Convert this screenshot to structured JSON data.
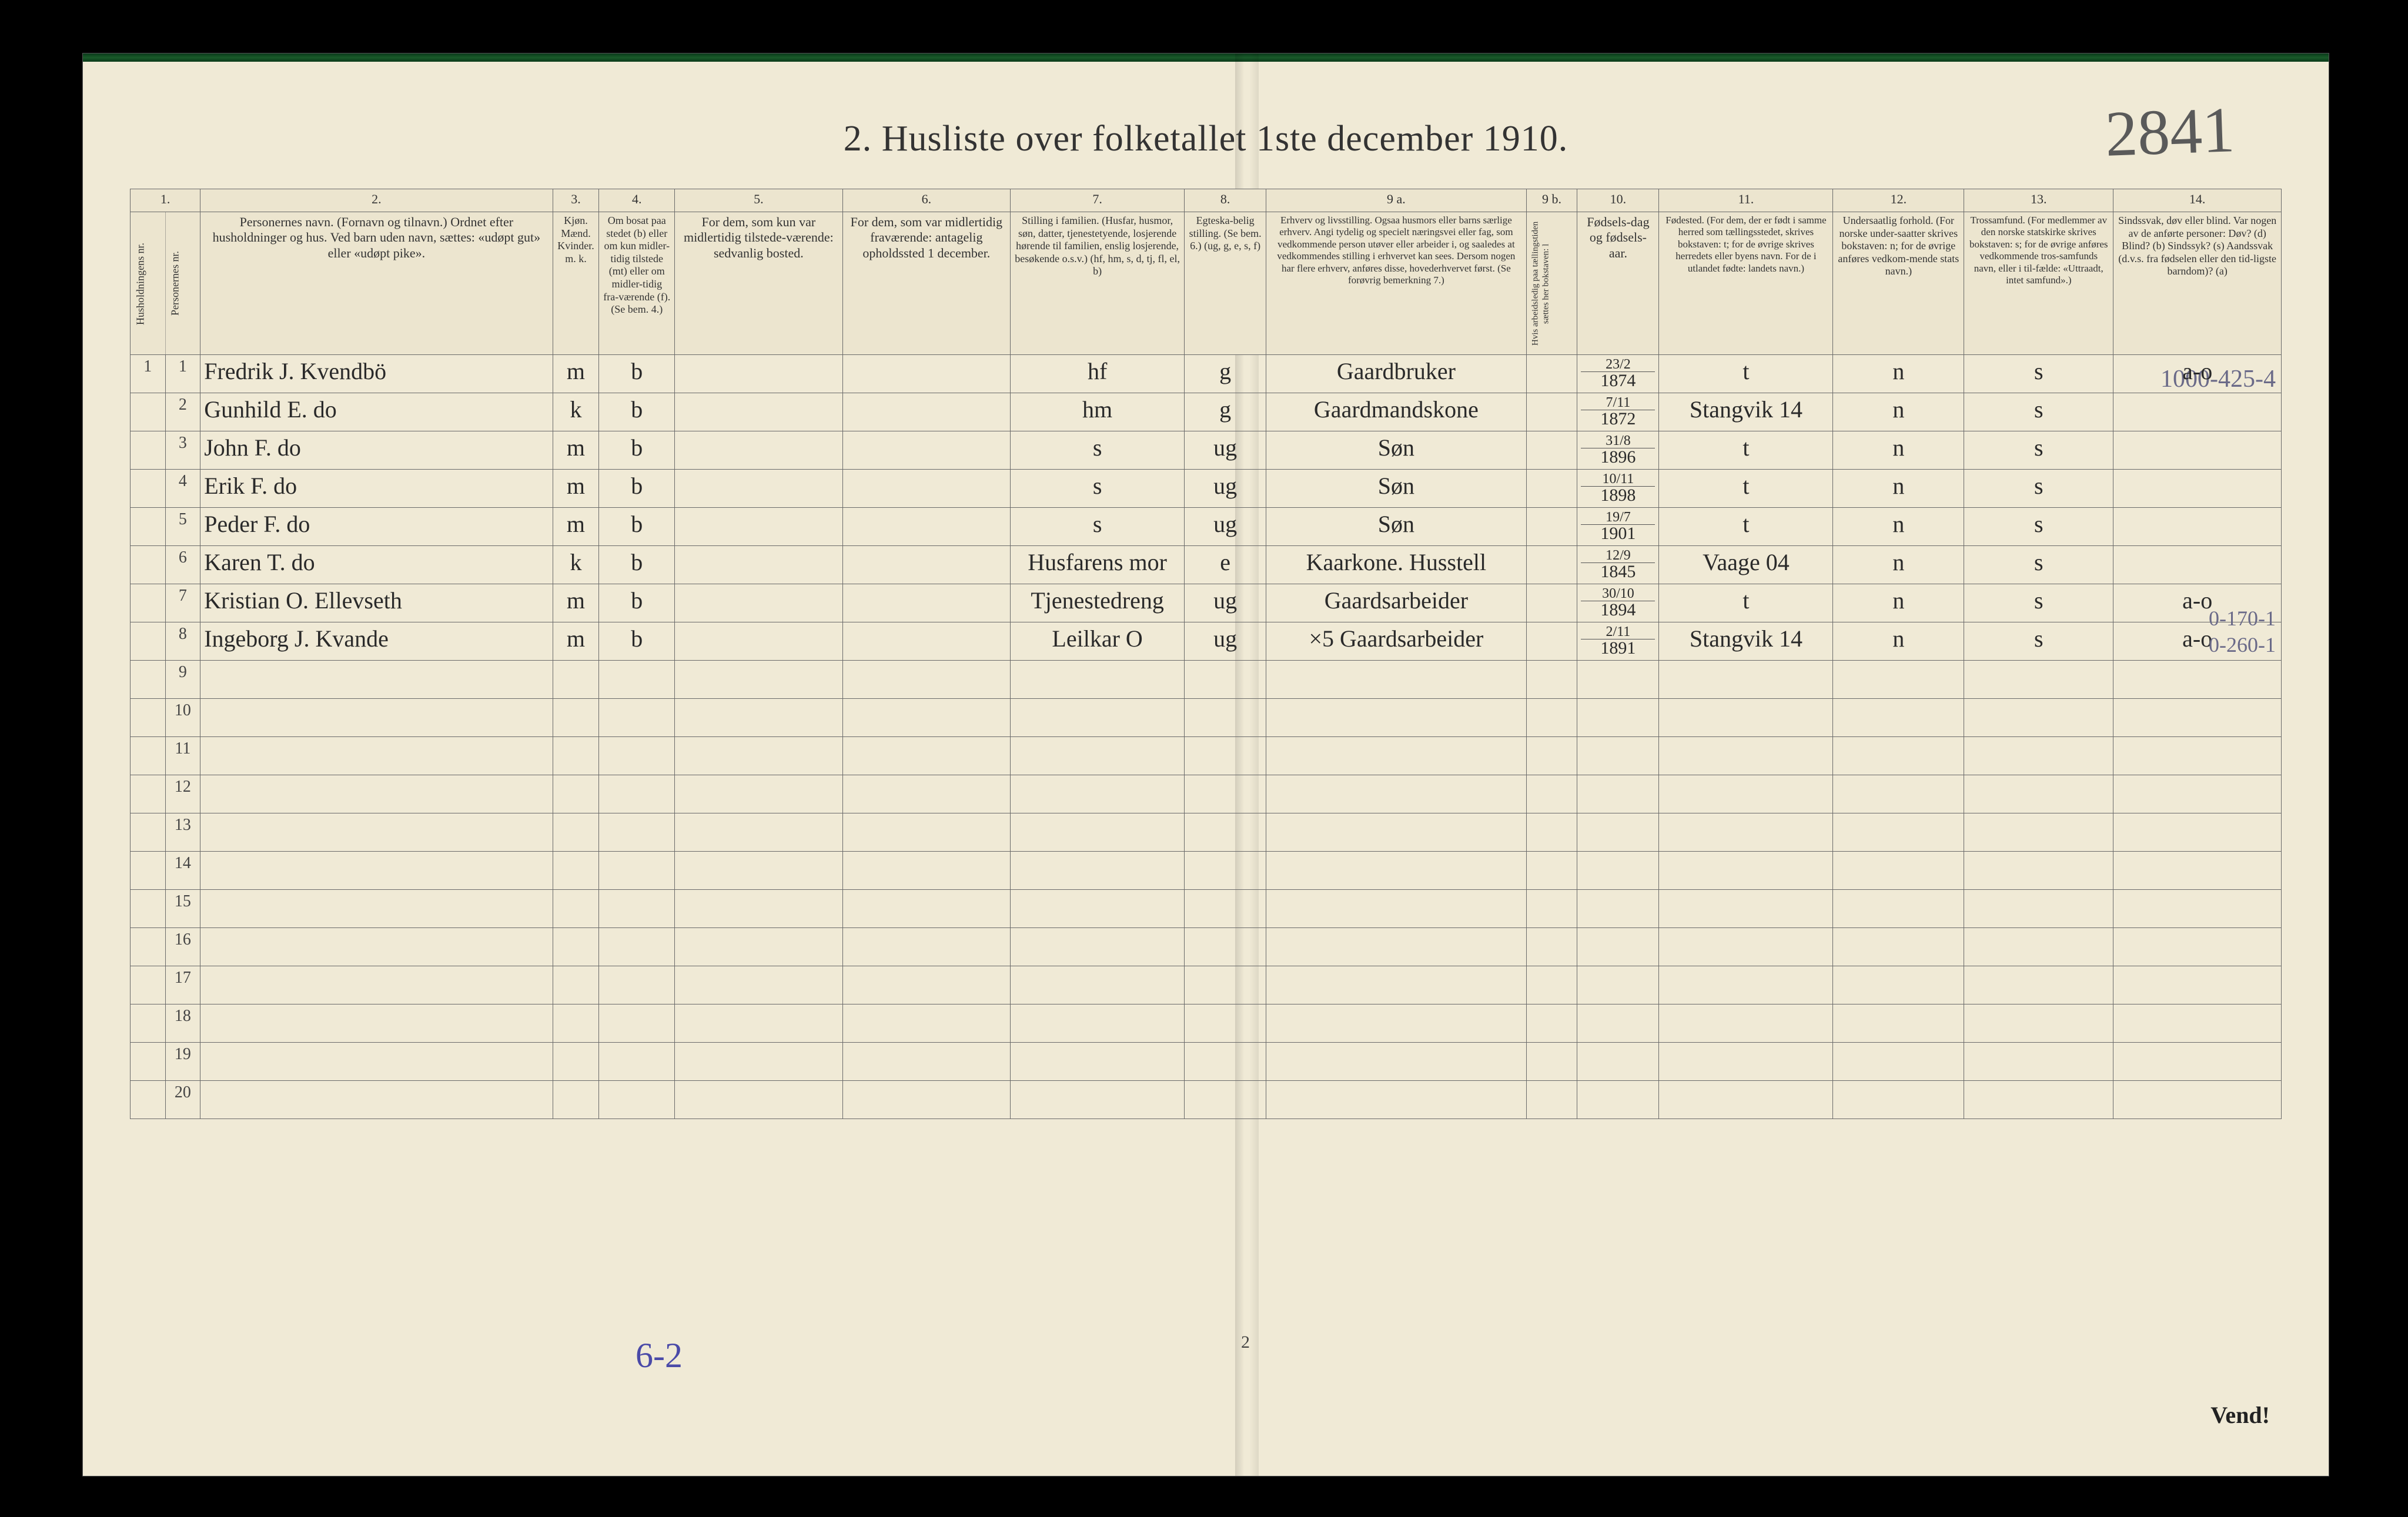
{
  "title": "2.  Husliste over folketallet 1ste december 1910.",
  "handwritten_top_number": "2841",
  "pencil_top_right": "1000-425-4",
  "bottom_page_num": "2",
  "vend": "Vend!",
  "bottom_pencil": "6-2",
  "pencil_side": [
    "0-170-1",
    "0-260-1"
  ],
  "col_nums": [
    "1.",
    "",
    "2.",
    "3.",
    "",
    "4.",
    "5.",
    "6.",
    "7.",
    "8.",
    "9 a.",
    "9 b.",
    "10.",
    "11.",
    "12.",
    "13.",
    "14."
  ],
  "headers": {
    "c1": "Husholdningens nr.",
    "c1b": "Personernes nr.",
    "c2": "Personernes navn.\n(Fornavn og tilnavn.)\nOrdnet efter husholdninger og hus.\nVed barn uden navn, sættes: «udøpt gut» eller «udøpt pike».",
    "c3": "Kjøn.\nMænd.  Kvinder.\nm.   k.",
    "c4": "Om bosat paa stedet (b) eller om kun midler-tidig tilstede (mt) eller om midler-tidig fra-værende (f). (Se bem. 4.)",
    "c5": "For dem, som kun var midlertidig tilstede-værende:\nsedvanlig bosted.",
    "c6": "For dem, som var midlertidig fraværende:\nantagelig opholdssted 1 december.",
    "c7": "Stilling i familien.\n(Husfar, husmor, søn, datter, tjenestetyende, losjerende hørende til familien, enslig losjerende, besøkende o.s.v.)\n(hf, hm, s, d, tj, fl, el, b)",
    "c8": "Egteska-belig stilling. (Se bem. 6.)\n(ug, g, e, s, f)",
    "c9a": "Erhverv og livsstilling.\nOgsaa husmors eller barns særlige erhverv. Angi tydelig og specielt næringsvei eller fag, som vedkommende person utøver eller arbeider i, og saaledes at vedkommendes stilling i erhvervet kan sees. Dersom nogen har flere erhverv, anføres disse, hovederhvervet først. (Se forøvrig bemerkning 7.)",
    "c9b": "Hvis arbeidsledig paa tællingstiden sættes her bokstaven: l",
    "c10": "Fødsels-dag og fødsels-aar.",
    "c11": "Fødested.\n(For dem, der er født i samme herred som tællingsstedet, skrives bokstaven: t; for de øvrige skrives herredets eller byens navn. For de i utlandet fødte: landets navn.)",
    "c12": "Undersaatlig forhold.\n(For norske under-saatter skrives bokstaven: n; for de øvrige anføres vedkom-mende stats navn.)",
    "c13": "Trossamfund.\n(For medlemmer av den norske statskirke skrives bokstaven: s; for de øvrige anføres vedkommende tros-samfunds navn, eller i til-fælde: «Uttraadt, intet samfund».)",
    "c14": "Sindssvak, døv eller blind.\nVar nogen av de anførte personer:\nDøv? (d)  Blind? (b)  Sindssyk? (s)  Aandssvak (d.v.s. fra fødselen eller den tid-ligste barndom)? (a)"
  },
  "rows": [
    {
      "hn": "1",
      "pn": "1",
      "name": "Fredrik J. Kvendbö",
      "sex": "m",
      "res": "b",
      "fam": "hf",
      "mar": "g",
      "occ": "Gaardbruker",
      "bd": "23/2",
      "by": "1874",
      "bp": "t",
      "nat": "n",
      "rel": "s",
      "dis": "a-o"
    },
    {
      "hn": "",
      "pn": "2",
      "name": "Gunhild E.   do",
      "sex": "k",
      "res": "b",
      "fam": "hm",
      "mar": "g",
      "occ": "Gaardmandskone",
      "bd": "7/11",
      "by": "1872",
      "bp": "Stangvik 14",
      "nat": "n",
      "rel": "s",
      "dis": ""
    },
    {
      "hn": "",
      "pn": "3",
      "name": "John F.   do",
      "sex": "m",
      "res": "b",
      "fam": "s",
      "mar": "ug",
      "occ": "Søn",
      "bd": "31/8",
      "by": "1896",
      "bp": "t",
      "nat": "n",
      "rel": "s",
      "dis": ""
    },
    {
      "hn": "",
      "pn": "4",
      "name": "Erik F.   do",
      "sex": "m",
      "res": "b",
      "fam": "s",
      "mar": "ug",
      "occ": "Søn",
      "bd": "10/11",
      "by": "1898",
      "bp": "t",
      "nat": "n",
      "rel": "s",
      "dis": ""
    },
    {
      "hn": "",
      "pn": "5",
      "name": "Peder F.   do",
      "sex": "m",
      "res": "b",
      "fam": "s",
      "mar": "ug",
      "occ": "Søn",
      "bd": "19/7",
      "by": "1901",
      "bp": "t",
      "nat": "n",
      "rel": "s",
      "dis": ""
    },
    {
      "hn": "",
      "pn": "6",
      "name": "Karen T.   do",
      "sex": "k",
      "res": "b",
      "fam": "Husfarens mor",
      "mar": "e",
      "occ": "Kaarkone. Husstell",
      "bd": "12/9",
      "by": "1845",
      "bp": "Vaage 04",
      "nat": "n",
      "rel": "s",
      "dis": ""
    },
    {
      "hn": "",
      "pn": "7",
      "name": "Kristian O. Ellevseth",
      "sex": "m",
      "res": "b",
      "fam": "Tjenestedreng",
      "mar": "ug",
      "occ": "Gaardsarbeider",
      "bd": "30/10",
      "by": "1894",
      "bp": "t",
      "nat": "n",
      "rel": "s",
      "dis": "a-o"
    },
    {
      "hn": "",
      "pn": "8",
      "name": "Ingeborg J. Kvande",
      "sex": "m",
      "res": "b",
      "fam": "Leilkar O",
      "mar": "ug",
      "occ": "×5 Gaardsarbeider",
      "bd": "2/11",
      "by": "1891",
      "bp": "Stangvik 14",
      "nat": "n",
      "rel": "s",
      "dis": "a-o"
    }
  ],
  "empty_rows": [
    9,
    10,
    11,
    12,
    13,
    14,
    15,
    16,
    17,
    18,
    19,
    20
  ],
  "colors": {
    "paper": "#f0ead6",
    "ink": "#2a2a2a",
    "rule": "#6a6a6a",
    "pencil": "#6a6a88"
  }
}
